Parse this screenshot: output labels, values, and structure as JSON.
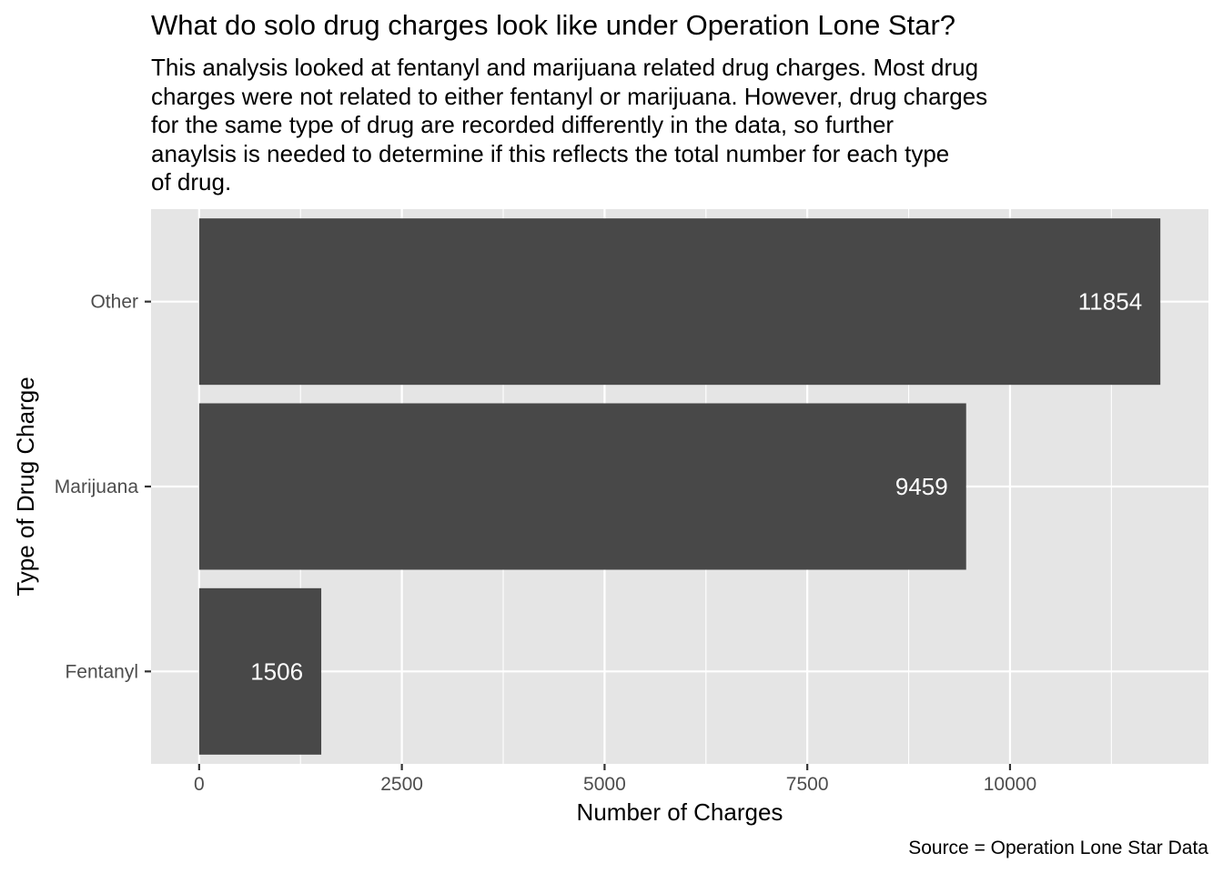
{
  "chart_data": {
    "type": "bar",
    "orientation": "horizontal",
    "title": "What do solo drug charges look like under Operation Lone Star?",
    "subtitle_lines": [
      "This analysis looked at fentanyl and marijuana related drug charges. Most drug",
      "charges were not related to either fentanyl or marijuana. However, drug charges",
      "for the same type of drug are recorded differently in the data, so further",
      "anaylsis is needed to determine if this reflects the total number for each type",
      "of drug."
    ],
    "caption": "Source = Operation Lone Star Data",
    "xlabel": "Number of Charges",
    "ylabel": "Type of Drug Charge",
    "categories": [
      "Other",
      "Marijuana",
      "Fentanyl"
    ],
    "values": [
      11854,
      9459,
      1506
    ],
    "data_labels": [
      "11854",
      "9459",
      "1506"
    ],
    "x_ticks": [
      0,
      2500,
      5000,
      7500,
      10000
    ],
    "x_tick_labels": [
      "0",
      "2500",
      "5000",
      "7500",
      "10000"
    ],
    "xlim": [
      -593,
      12447
    ],
    "bar_color": "#484848",
    "panel_color": "#e5e5e5",
    "grid": true,
    "legend": "none"
  }
}
